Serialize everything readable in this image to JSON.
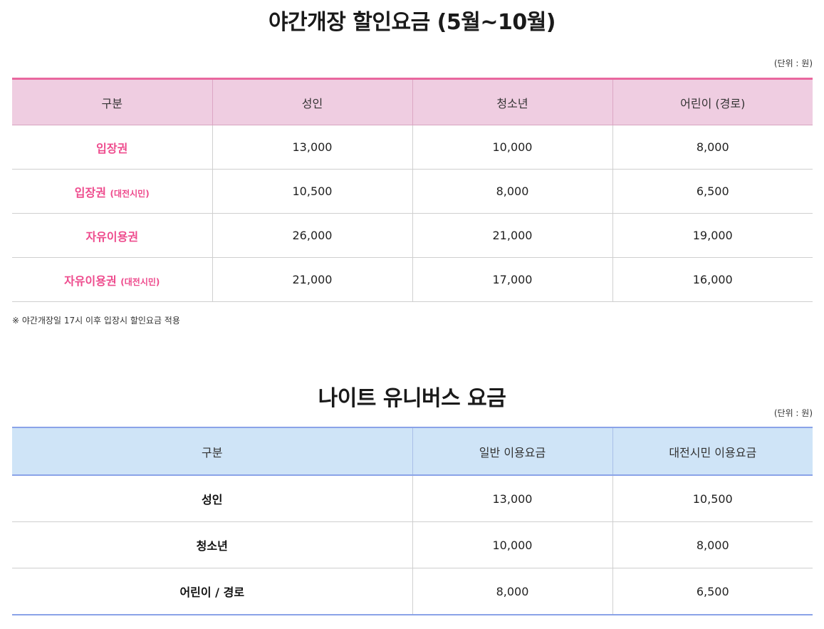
{
  "night_discount": {
    "title": "야간개장 할인요금 (5월~10월)",
    "unit": "(단위 : 원)",
    "headers": [
      "구분",
      "성인",
      "청소년",
      "어린이 (경로)"
    ],
    "rows": [
      {
        "label": "입장권",
        "sub": "",
        "values": [
          "13,000",
          "10,000",
          "8,000"
        ]
      },
      {
        "label": "입장권",
        "sub": "(대전시민)",
        "values": [
          "10,500",
          "8,000",
          "6,500"
        ]
      },
      {
        "label": "자유이용권",
        "sub": "",
        "values": [
          "26,000",
          "21,000",
          "19,000"
        ]
      },
      {
        "label": "자유이용권",
        "sub": "(대전시민)",
        "values": [
          "21,000",
          "17,000",
          "16,000"
        ]
      }
    ],
    "note": "※ 야간개장일 17시 이후 입장시 할인요금 적용",
    "accent_color": "#e9679f",
    "header_bg": "#efcde1",
    "label_color": "#ee4b8d"
  },
  "night_universe": {
    "title": "나이트 유니버스 요금",
    "unit": "(단위 : 원)",
    "headers": [
      "구분",
      "일반 이용요금",
      "대전시민 이용요금"
    ],
    "rows": [
      {
        "label": "성인",
        "values": [
          "13,000",
          "10,500"
        ]
      },
      {
        "label": "청소년",
        "values": [
          "10,000",
          "8,000"
        ]
      },
      {
        "label": "어린이 / 경로",
        "values": [
          "8,000",
          "6,500"
        ]
      }
    ],
    "accent_color": "#8aa3e8",
    "header_bg": "#cfe4f7"
  }
}
